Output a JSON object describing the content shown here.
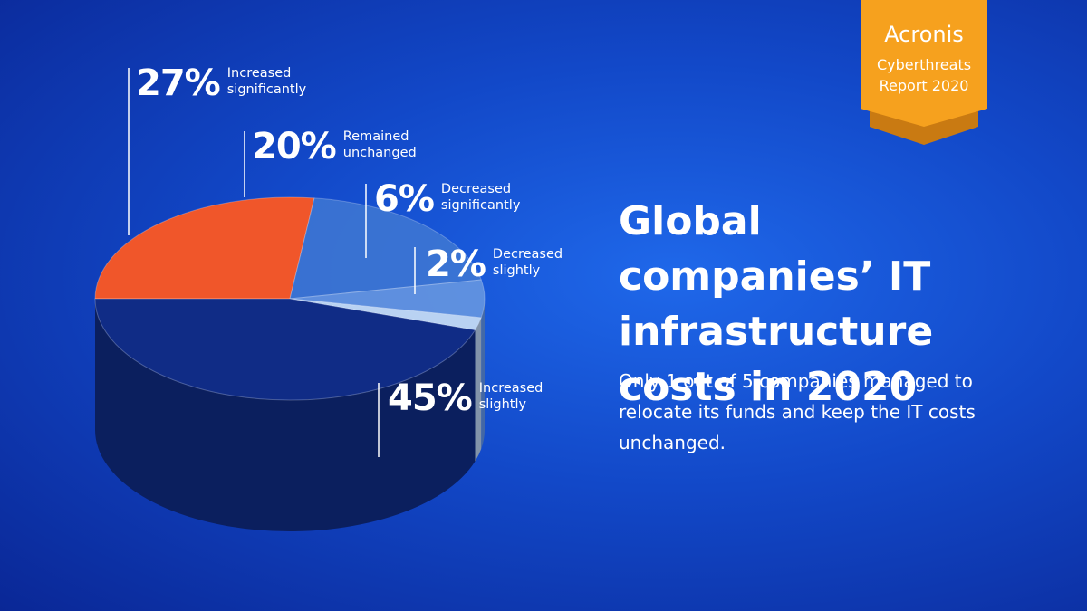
{
  "brand": {
    "name": "Acronis",
    "report": "Cyberthreats Report 2020"
  },
  "chart_data": {
    "type": "pie",
    "title": "Global companies’ IT infrastructure costs in 2020",
    "subtitle": "Only 1 out of 5 companies managed to relocate its funds and keep the IT costs unchanged.",
    "categories": [
      "Increased significantly",
      "Remained unchanged",
      "Decreased significantly",
      "Decreased slightly",
      "Increased slightly"
    ],
    "values": [
      27,
      20,
      6,
      2,
      45
    ],
    "value_labels": [
      "27%",
      "20%",
      "6%",
      "2%",
      "45%"
    ],
    "colors": [
      "#f0562a",
      "#3f78d2",
      "#6b9ae0",
      "#b9d2f2",
      "#102c86"
    ]
  }
}
